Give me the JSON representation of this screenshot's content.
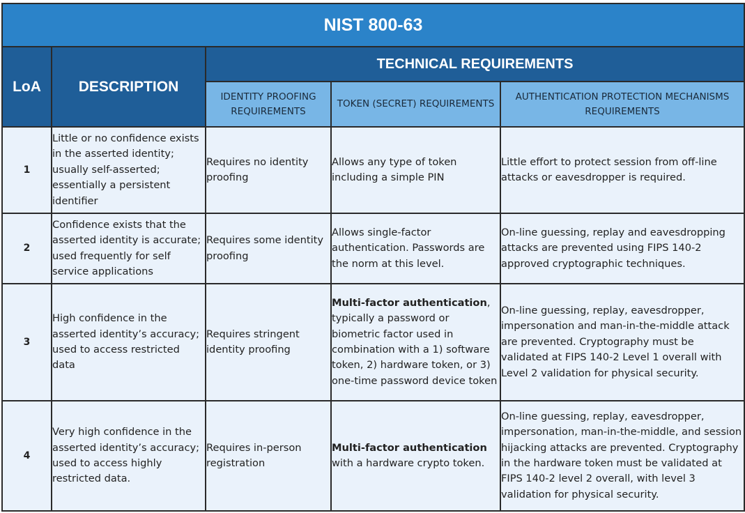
{
  "title": "NIST 800-63",
  "headers": {
    "loa": "LoA",
    "description": "DESCRIPTION",
    "technical": "TECHNICAL REQUIREMENTS",
    "identity_proofing": "IDENTITY PROOFING REQUIREMENTS",
    "token": "TOKEN (SECRET) REQUIREMENTS",
    "auth_protection": "AUTHENTICATION PROTECTION MECHANISMS REQUIREMENTS"
  },
  "rows": [
    {
      "loa": "1",
      "description": "Little or no confidence exists in the asserted identity; usually self-asserted; essentially a persistent identifier",
      "identity_proofing": "Requires no identity proofing",
      "token_bold": "",
      "token": "Allows any type of token including a simple PIN",
      "auth_protection": "Little effort to protect session from off-line attacks or eavesdropper is required."
    },
    {
      "loa": "2",
      "description": "Confidence exists that the asserted identity is accurate; used frequently for self service applications",
      "identity_proofing": "Requires some identity proofing",
      "token_bold": "",
      "token": "Allows single-factor authentication. Passwords are the norm at this level.",
      "auth_protection": "On-line guessing, replay and eavesdropping attacks are prevented using FIPS 140-2 approved cryptographic techniques."
    },
    {
      "loa": "3",
      "description": "High confidence in the asserted identity’s accuracy; used to access restricted data",
      "identity_proofing": "Requires stringent identity proofing",
      "token_bold": "Multi-factor authentication",
      "token": ", typically a password or biometric factor used in combination with a 1) software token, 2) hardware token, or 3) one-time password device token",
      "auth_protection": "On-line guessing, replay, eavesdropper, impersonation and man-in-the-middle attack are prevented. Cryptography must be validated at FIPS 140-2 Level 1 overall with Level 2 validation for physical security."
    },
    {
      "loa": "4",
      "description": "Very high confidence in the asserted identity’s accuracy; used to access highly restricted data.",
      "identity_proofing": "Requires in-person registration",
      "token_bold": "Multi-factor authentication",
      "token": " with a hardware crypto token.",
      "auth_protection": "On-line guessing, replay, eavesdropper, impersonation, man-in-the-middle, and session hijacking attacks are prevented. Cryptography in the hardware token must be validated at FIPS 140-2 level 2 overall, with level 3 validation for physical security."
    }
  ]
}
